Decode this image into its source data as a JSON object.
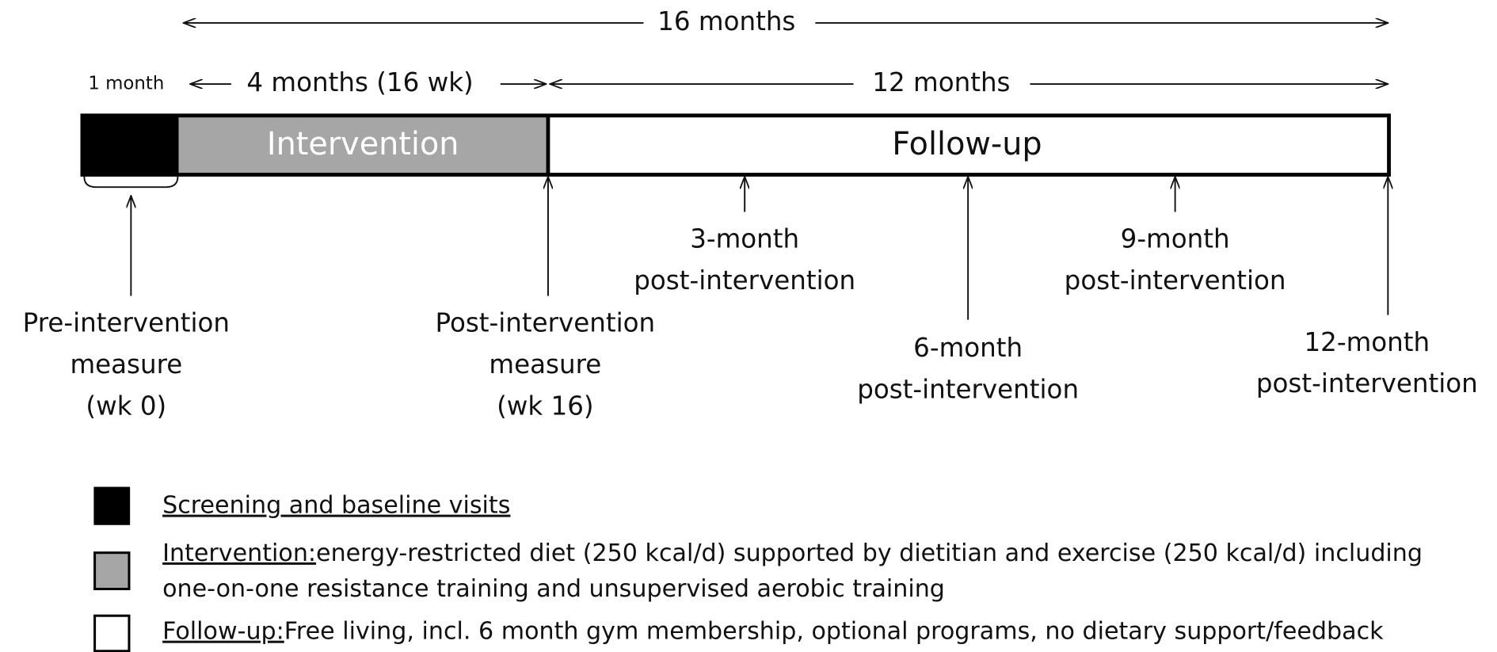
{
  "spans": {
    "total": "16 months",
    "screening": "1 month",
    "intervention": "4 months (16 wk)",
    "follow_up": "12 months"
  },
  "phases": {
    "intervention": "Intervention",
    "follow_up": "Follow-up"
  },
  "milestones": [
    {
      "lines": [
        "Pre-intervention",
        "measure",
        "(wk 0)"
      ]
    },
    {
      "lines": [
        "Post-intervention",
        "measure",
        "(wk 16)"
      ]
    },
    {
      "lines": [
        "3-month",
        "post-intervention"
      ]
    },
    {
      "lines": [
        "6-month",
        "post-intervention"
      ]
    },
    {
      "lines": [
        "9-month",
        "post-intervention"
      ]
    },
    {
      "lines": [
        "12-month",
        "post-intervention"
      ]
    }
  ],
  "legend": [
    {
      "term": "Screening and baseline visits",
      "lines": []
    },
    {
      "term": "Intervention:",
      "lines": [
        "energy-restricted diet (250 kcal/d) supported by dietitian and exercise (250 kcal/d) including",
        "one-on-one resistance training and unsupervised aerobic training"
      ]
    },
    {
      "term": "Follow-up:",
      "lines": [
        "Free living, incl. 6 month gym membership, optional programs, no dietary support/feedback"
      ]
    }
  ]
}
